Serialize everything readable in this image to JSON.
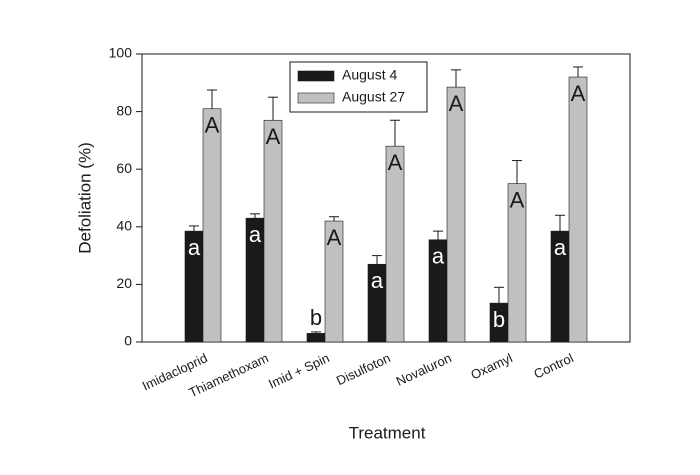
{
  "chart_data": {
    "type": "bar",
    "xlabel": "Treatment",
    "ylabel": "Defoliation (%)",
    "categories": [
      "Imidacloprid",
      "Thiamethoxam",
      "Imid + Spin",
      "Disulfoton",
      "Novaluron",
      "Oxamyl",
      "Control"
    ],
    "series": [
      {
        "name": "August 4",
        "color": "#1a1a1a",
        "values": [
          38.5,
          43,
          3,
          27,
          35.5,
          13.5,
          38.5
        ],
        "errors": [
          1.8,
          1.5,
          0.5,
          3,
          3,
          5.5,
          5.5
        ],
        "letters": [
          "a",
          "a",
          "b",
          "a",
          "a",
          "b",
          "a"
        ],
        "letter_color": "#ffffff"
      },
      {
        "name": "August 27",
        "color": "#c0c0c0",
        "values": [
          81,
          77,
          42,
          68,
          88.5,
          55,
          92
        ],
        "errors": [
          6.5,
          8,
          1.5,
          9,
          6,
          8,
          3.5
        ],
        "letters": [
          "A",
          "A",
          "A",
          "A",
          "A",
          "A",
          "A"
        ],
        "letter_color": "#1a1a1a"
      }
    ],
    "ylim": [
      0,
      100
    ],
    "yticks": [
      0,
      20,
      40,
      60,
      80,
      100
    ],
    "grid": false,
    "legend": "top"
  }
}
